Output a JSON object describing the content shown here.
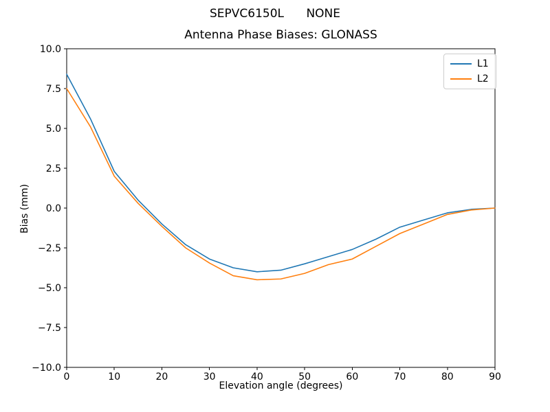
{
  "figure": {
    "background": "#ffffff",
    "text_color": "#000000",
    "spine_color": "#000000"
  },
  "chart_data": {
    "type": "line",
    "suptitle": "SEPVC6150L      NONE",
    "title": "Antenna Phase Biases: GLONASS",
    "xlabel": "Elevation angle (degrees)",
    "ylabel": "Bias (mm)",
    "xlim": [
      0,
      90
    ],
    "ylim": [
      -10,
      10
    ],
    "xticks": [
      0,
      10,
      20,
      30,
      40,
      50,
      60,
      70,
      80,
      90
    ],
    "xtick_labels": [
      "0",
      "10",
      "20",
      "30",
      "40",
      "50",
      "60",
      "70",
      "80",
      "90"
    ],
    "yticks": [
      10.0,
      7.5,
      5.0,
      2.5,
      0.0,
      -2.5,
      -5.0,
      -7.5,
      -10.0
    ],
    "ytick_labels": [
      "10.0",
      "7.5",
      "5.0",
      "2.5",
      "0.0",
      "−2.5",
      "−5.0",
      "−7.5",
      "−10.0"
    ],
    "grid": false,
    "legend_position": "upper right",
    "x": [
      0,
      5,
      10,
      15,
      20,
      25,
      30,
      35,
      40,
      45,
      50,
      55,
      60,
      65,
      70,
      75,
      80,
      85,
      90
    ],
    "series": [
      {
        "name": "L1",
        "color": "#1f77b4",
        "values": [
          8.4,
          5.6,
          2.3,
          0.5,
          -1.0,
          -2.3,
          -3.2,
          -3.75,
          -4.0,
          -3.9,
          -3.5,
          -3.05,
          -2.6,
          -1.95,
          -1.2,
          -0.75,
          -0.3,
          -0.08,
          0.0
        ]
      },
      {
        "name": "L2",
        "color": "#ff7f0e",
        "values": [
          7.5,
          5.1,
          2.0,
          0.3,
          -1.15,
          -2.5,
          -3.45,
          -4.25,
          -4.5,
          -4.45,
          -4.1,
          -3.55,
          -3.2,
          -2.4,
          -1.6,
          -1.0,
          -0.4,
          -0.12,
          0.0
        ]
      }
    ]
  }
}
